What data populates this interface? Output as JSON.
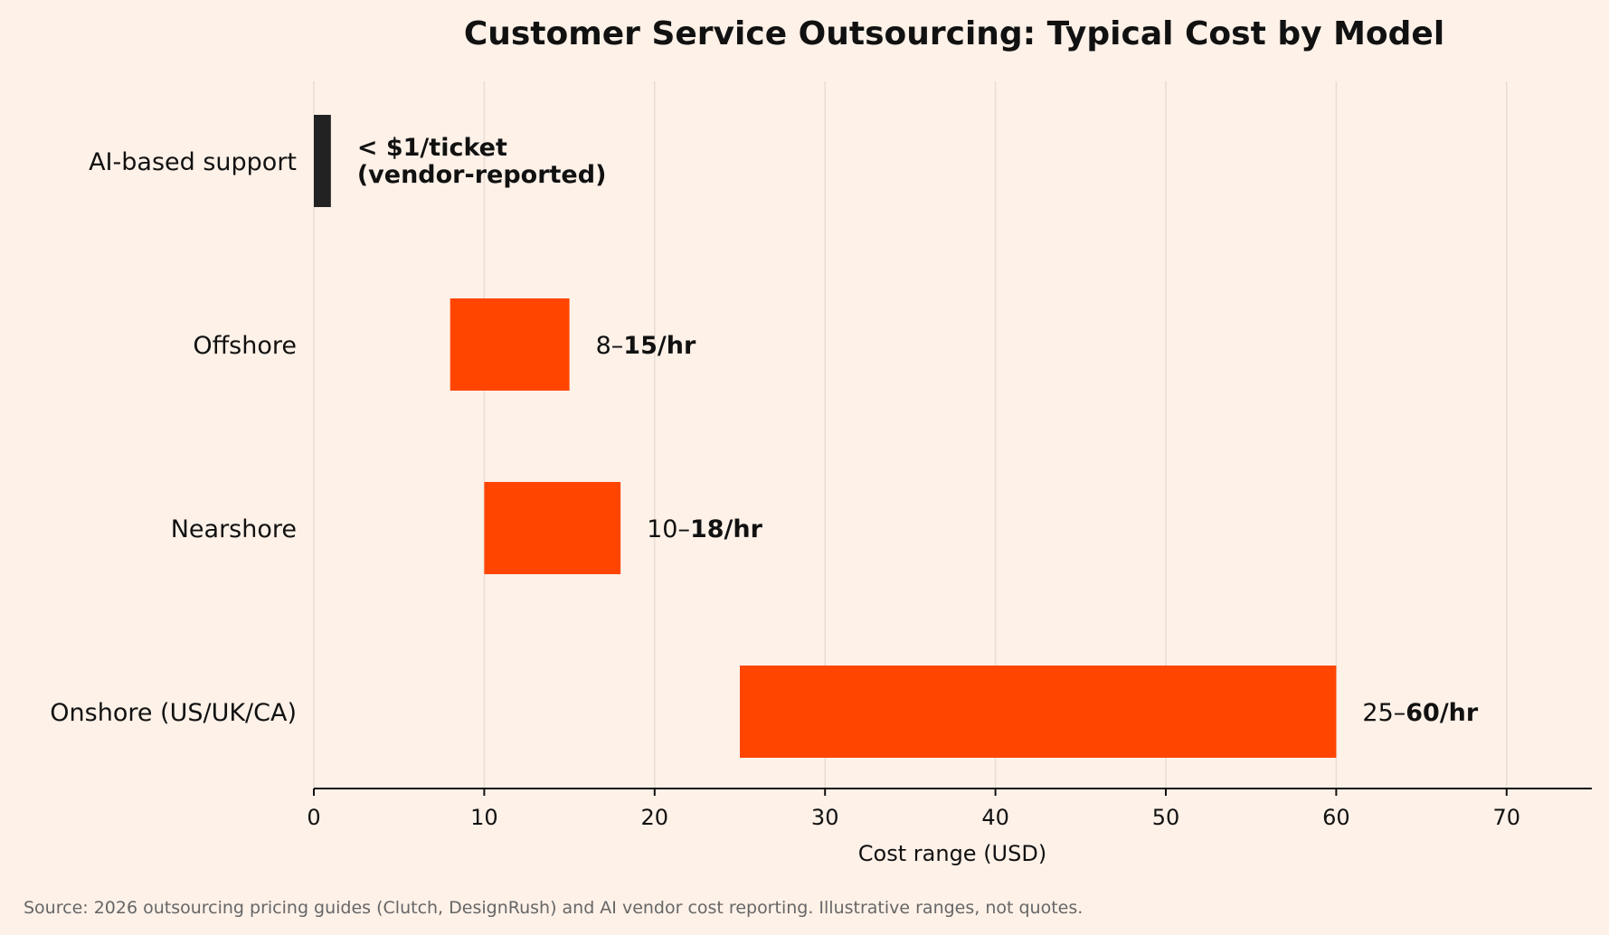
{
  "chart_data": {
    "type": "bar",
    "orientation": "horizontal",
    "title": "Customer Service Outsourcing: Typical Cost by Model",
    "xlabel": "Cost range (USD)",
    "ylabel": "",
    "xlim": [
      0,
      75
    ],
    "xticks": [
      0,
      10,
      20,
      30,
      40,
      50,
      60,
      70
    ],
    "grid": "vertical",
    "legend": "none",
    "bars": [
      {
        "category": "AI-based support",
        "start": 0,
        "end": 1,
        "color": "#222222",
        "label_lines": [
          "< $1/ticket",
          "(vendor-reported)"
        ],
        "label_bold": true
      },
      {
        "category": "Offshore",
        "start": 8,
        "end": 15,
        "color": "#ff4500",
        "label_plain": "8–",
        "label_bold_part": "15/hr"
      },
      {
        "category": "Nearshore",
        "start": 10,
        "end": 18,
        "color": "#ff4500",
        "label_plain": "10–",
        "label_bold_part": "18/hr"
      },
      {
        "category": "Onshore (US/UK/CA)",
        "start": 25,
        "end": 60,
        "color": "#ff4500",
        "label_plain": "25–",
        "label_bold_part": "60/hr"
      }
    ]
  },
  "source_note": "Source: 2026 outsourcing pricing guides (Clutch, DesignRush) and AI vendor cost reporting. Illustrative ranges, not quotes."
}
